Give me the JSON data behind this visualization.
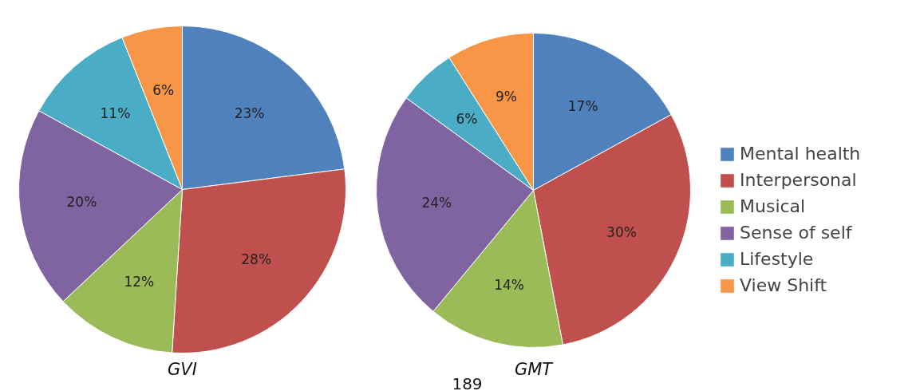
{
  "chart_data": [
    {
      "type": "pie",
      "title": "GVI",
      "categories": [
        null,
        null,
        null,
        null,
        null,
        null
      ],
      "values": [
        23,
        28,
        12,
        20,
        11,
        6
      ],
      "colors": [
        "#4f81bd",
        "#c0504d",
        "#9bbb59",
        "#8064a2",
        "#4bacc6",
        "#f79646"
      ],
      "value_labels": [
        "23%",
        "28%",
        "12%",
        "20%",
        "11%",
        "6%"
      ],
      "legend": false
    },
    {
      "type": "pie",
      "title": "GMT",
      "categories": [
        "Mental health",
        "Interpersonal",
        "Musical",
        "Sense of self",
        "Lifestyle",
        "View Shift"
      ],
      "values": [
        17,
        30,
        14,
        24,
        6,
        9
      ],
      "colors": [
        "#4f81bd",
        "#c0504d",
        "#9bbb59",
        "#8064a2",
        "#4bacc6",
        "#f79646"
      ],
      "value_labels": [
        "17%",
        "30%",
        "14%",
        "24%",
        "6%",
        "9%"
      ],
      "legend": "right",
      "annotations": [
        "189"
      ]
    }
  ]
}
